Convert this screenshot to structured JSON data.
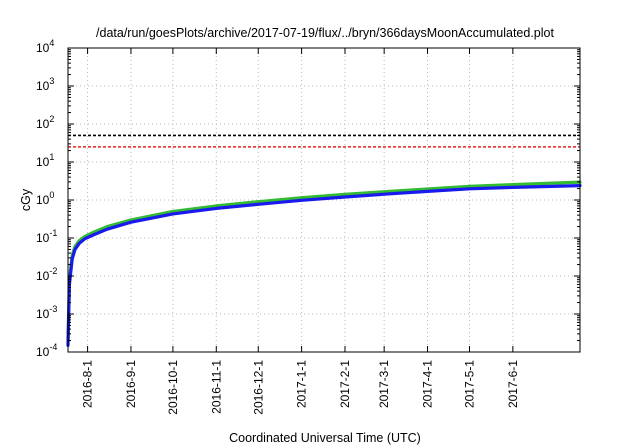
{
  "chart_data": {
    "type": "line",
    "title": "/data/run/goesPlots/archive/2017-07-19/flux/../bryn/366daysMoonAccumulated.plot",
    "xlabel": "Coordinated Universal Time (UTC)",
    "ylabel": "cGy",
    "x_range": [
      "2016-07-18",
      "2017-07-19"
    ],
    "y_scale": "log",
    "ylim": [
      0.0001,
      10000
    ],
    "y_ticks": [
      {
        "base": "10",
        "exp": "-4",
        "value": 0.0001
      },
      {
        "base": "10",
        "exp": "-3",
        "value": 0.001
      },
      {
        "base": "10",
        "exp": "-2",
        "value": 0.01
      },
      {
        "base": "10",
        "exp": "-1",
        "value": 0.1
      },
      {
        "base": "10",
        "exp": "0",
        "value": 1
      },
      {
        "base": "10",
        "exp": "1",
        "value": 10
      },
      {
        "base": "10",
        "exp": "2",
        "value": 100
      },
      {
        "base": "10",
        "exp": "3",
        "value": 1000
      },
      {
        "base": "10",
        "exp": "4",
        "value": 10000
      }
    ],
    "x_ticks": [
      {
        "label": "2016-8-1",
        "date": "2016-08-01"
      },
      {
        "label": "2016-9-1",
        "date": "2016-09-01"
      },
      {
        "label": "2016-10-1",
        "date": "2016-10-01"
      },
      {
        "label": "2016-11-1",
        "date": "2016-11-01"
      },
      {
        "label": "2016-12-1",
        "date": "2016-12-01"
      },
      {
        "label": "2017-1-1",
        "date": "2017-01-01"
      },
      {
        "label": "2017-2-1",
        "date": "2017-02-01"
      },
      {
        "label": "2017-3-1",
        "date": "2017-03-01"
      },
      {
        "label": "2017-4-1",
        "date": "2017-04-01"
      },
      {
        "label": "2017-5-1",
        "date": "2017-05-01"
      },
      {
        "label": "2017-6-1",
        "date": "2017-06-01"
      }
    ],
    "grid": true,
    "legend": false,
    "threshold_lines": [
      {
        "value": 50,
        "color": "#000000",
        "style": "dashed"
      },
      {
        "value": 25,
        "color": "#e8211c",
        "style": "dashed"
      }
    ],
    "series": [
      {
        "color": "#33bb33",
        "x": [
          "2016-07-18",
          "2016-07-19",
          "2016-07-21",
          "2016-07-23",
          "2016-07-26",
          "2016-07-30",
          "2016-08-05",
          "2016-08-15",
          "2016-09-01",
          "2016-10-01",
          "2016-11-01",
          "2016-12-01",
          "2017-01-01",
          "2017-02-01",
          "2017-03-01",
          "2017-04-01",
          "2017-05-01",
          "2017-06-01",
          "2017-07-19"
        ],
        "y": [
          0.0002,
          0.008,
          0.035,
          0.06,
          0.085,
          0.11,
          0.14,
          0.2,
          0.3,
          0.5,
          0.7,
          0.9,
          1.15,
          1.4,
          1.65,
          1.95,
          2.3,
          2.55,
          2.95
        ]
      },
      {
        "color": "#1a1aee",
        "x": [
          "2016-07-18",
          "2016-07-19",
          "2016-07-21",
          "2016-07-23",
          "2016-07-26",
          "2016-07-30",
          "2016-08-05",
          "2016-08-15",
          "2016-09-01",
          "2016-10-01",
          "2016-11-01",
          "2016-12-01",
          "2017-01-01",
          "2017-02-01",
          "2017-03-01",
          "2017-04-01",
          "2017-05-01",
          "2017-06-01",
          "2017-07-19"
        ],
        "y": [
          0.00015,
          0.006,
          0.028,
          0.05,
          0.072,
          0.095,
          0.12,
          0.17,
          0.26,
          0.43,
          0.6,
          0.77,
          0.98,
          1.2,
          1.42,
          1.68,
          1.97,
          2.15,
          2.4
        ]
      }
    ]
  }
}
